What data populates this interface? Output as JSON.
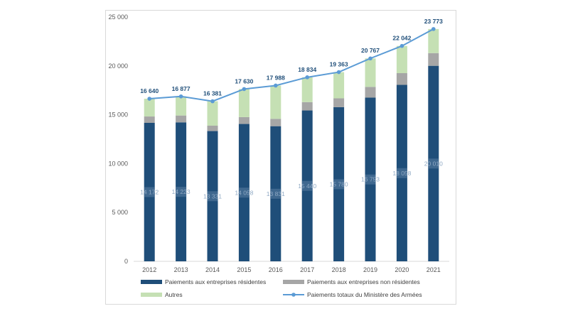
{
  "chart_data": {
    "type": "bar",
    "stacked": true,
    "categories": [
      "2012",
      "2013",
      "2014",
      "2015",
      "2016",
      "2017",
      "2018",
      "2019",
      "2020",
      "2021"
    ],
    "series": [
      {
        "name": "Paiements aux entreprises résidentes",
        "color": "#1f4e79",
        "values": [
          14172,
          14223,
          13331,
          14058,
          13831,
          15440,
          15780,
          16753,
          18058,
          20010
        ],
        "labels": [
          "14 172",
          "14 223",
          "13 331",
          "14 058",
          "13 831",
          "15 440",
          "15 780",
          "16 753",
          "18 058",
          "20 010"
        ]
      },
      {
        "name": "Paiements aux entreprises non résidentes",
        "color": "#a6a6a6",
        "values": [
          650,
          700,
          550,
          700,
          750,
          850,
          900,
          1100,
          1200,
          1300
        ]
      },
      {
        "name": "Autres",
        "color": "#c5e0b4",
        "values": [
          1818,
          1954,
          2500,
          2872,
          3407,
          2544,
          2683,
          2914,
          2784,
          2463
        ]
      },
      {
        "name": "Paiements totaux du Ministère des Armées",
        "type": "line",
        "color": "#5b9bd5",
        "values": [
          16640,
          16877,
          16381,
          17630,
          17988,
          18834,
          19363,
          20767,
          22042,
          23773
        ],
        "labels": [
          "16 640",
          "16 877",
          "16 381",
          "17 630",
          "17 988",
          "18 834",
          "19 363",
          "20 767",
          "22 042",
          "23 773"
        ]
      }
    ],
    "ylim": [
      0,
      25000
    ],
    "yticks": [
      0,
      5000,
      10000,
      15000,
      20000,
      25000
    ],
    "ytick_labels": [
      "0",
      "5 000",
      "10 000",
      "15 000",
      "20 000",
      "25 000"
    ],
    "grid": false,
    "legend_position": "bottom",
    "title": "",
    "xlabel": "",
    "ylabel": ""
  }
}
